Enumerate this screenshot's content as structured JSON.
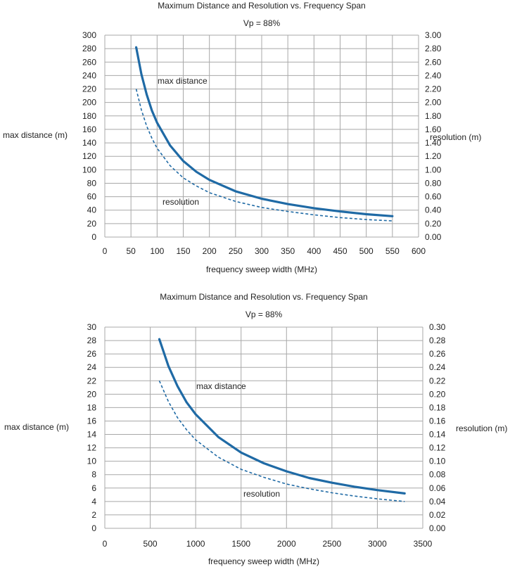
{
  "colors": {
    "series": "#1f6aa5",
    "grid": "#a8a8a8",
    "text": "#222222"
  },
  "chart_data": [
    {
      "type": "line",
      "title": "Maximum Distance and Resolution vs. Frequency Span",
      "subtitle": "Vp = 88%",
      "xlabel": "frequency sweep width (MHz)",
      "ylabel": "max  distance (m)",
      "y2label": "resolution (m)",
      "xlim": [
        0,
        600
      ],
      "ylim": [
        0,
        300
      ],
      "y2lim": [
        0,
        3
      ],
      "xticks": [
        "0",
        "50",
        "100",
        "150",
        "200",
        "250",
        "300",
        "350",
        "400",
        "450",
        "500",
        "550",
        "600"
      ],
      "yticks": [
        "0",
        "20",
        "40",
        "60",
        "80",
        "100",
        "120",
        "140",
        "160",
        "180",
        "200",
        "220",
        "240",
        "260",
        "280",
        "300"
      ],
      "y2ticks": [
        "0.00",
        "0.20",
        "0.40",
        "0.60",
        "0.80",
        "1.00",
        "1.20",
        "1.40",
        "1.60",
        "1.80",
        "2.00",
        "2.20",
        "2.40",
        "2.60",
        "2.80",
        "3.00"
      ],
      "grid": true,
      "series": [
        {
          "name": "max distance",
          "axis": "left",
          "style": "solid",
          "x": [
            60,
            70,
            80,
            90,
            100,
            125,
            150,
            175,
            200,
            250,
            300,
            350,
            400,
            450,
            500,
            550
          ],
          "y": [
            282,
            242,
            212,
            188,
            170,
            136,
            113,
            97,
            85,
            68,
            57,
            49,
            43,
            38,
            34,
            31
          ]
        },
        {
          "name": "resolution",
          "axis": "right",
          "style": "dashed",
          "x": [
            60,
            70,
            80,
            90,
            100,
            125,
            150,
            175,
            200,
            250,
            300,
            350,
            400,
            450,
            500,
            550
          ],
          "y": [
            2.2,
            1.89,
            1.65,
            1.47,
            1.32,
            1.06,
            0.88,
            0.76,
            0.66,
            0.53,
            0.44,
            0.38,
            0.33,
            0.29,
            0.26,
            0.24
          ]
        }
      ]
    },
    {
      "type": "line",
      "title": "Maximum Distance and Resolution vs. Frequency Span",
      "subtitle": "Vp = 88%",
      "xlabel": "frequency sweep width (MHz)",
      "ylabel": "max  distance (m)",
      "y2label": "resolution (m)",
      "xlim": [
        0,
        3500
      ],
      "ylim": [
        0,
        30
      ],
      "y2lim": [
        0,
        0.3
      ],
      "xticks": [
        "0",
        "500",
        "1000",
        "1500",
        "2000",
        "2500",
        "3000",
        "3500"
      ],
      "yticks": [
        "0",
        "2",
        "4",
        "6",
        "8",
        "10",
        "12",
        "14",
        "16",
        "18",
        "20",
        "22",
        "24",
        "26",
        "28",
        "30"
      ],
      "y2ticks": [
        "0.00",
        "0.02",
        "0.04",
        "0.06",
        "0.08",
        "0.10",
        "0.12",
        "0.14",
        "0.16",
        "0.18",
        "0.20",
        "0.22",
        "0.24",
        "0.26",
        "0.28",
        "0.30"
      ],
      "grid": true,
      "series": [
        {
          "name": "max distance",
          "axis": "left",
          "style": "solid",
          "x": [
            600,
            700,
            800,
            900,
            1000,
            1250,
            1500,
            1750,
            2000,
            2250,
            2500,
            2750,
            3000,
            3300
          ],
          "y": [
            28.2,
            24.2,
            21.2,
            18.8,
            17.0,
            13.6,
            11.3,
            9.7,
            8.5,
            7.5,
            6.8,
            6.2,
            5.7,
            5.2
          ]
        },
        {
          "name": "resolution",
          "axis": "right",
          "style": "dashed",
          "x": [
            600,
            700,
            800,
            900,
            1000,
            1250,
            1500,
            1750,
            2000,
            2250,
            2500,
            2750,
            3000,
            3300
          ],
          "y": [
            0.22,
            0.189,
            0.165,
            0.147,
            0.132,
            0.106,
            0.088,
            0.076,
            0.066,
            0.059,
            0.053,
            0.048,
            0.044,
            0.04
          ]
        }
      ]
    }
  ]
}
